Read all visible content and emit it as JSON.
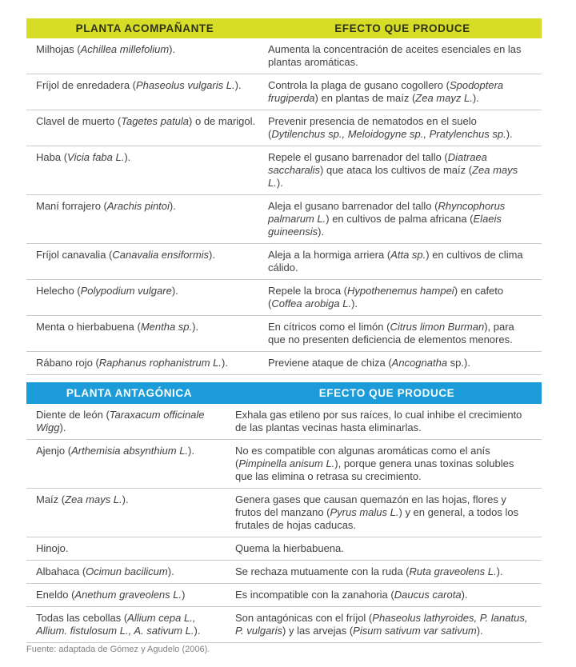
{
  "document": {
    "source_note": "Fuente: adaptada de Gómez y Agudelo (2006)."
  },
  "colors": {
    "companion_header_bg": "#d7dc26",
    "companion_header_text": "#2e3318",
    "antagonist_header_bg": "#1b9cd8",
    "antagonist_header_text": "#ffffff",
    "body_text": "#414042",
    "divider_line": "#c9cacb",
    "source_text": "#808285"
  },
  "tables": [
    {
      "name": "companion-plants",
      "header": {
        "col1": "PLANTA ACOMPAÑANTE",
        "col2": "EFECTO QUE PRODUCE",
        "bg": "#d7dc26",
        "color": "#2e3318"
      },
      "rows": [
        {
          "plant": "Milhojas (*Achillea millefolium*).",
          "effect": "Aumenta la concentración de aceites esenciales en las plantas aromáticas."
        },
        {
          "plant": "Fríjol de enredadera (*Phaseolus vulgaris L.*).",
          "effect": "Controla la plaga de gusano cogollero (*Spodoptera frugiperda*) en plantas de maíz (*Zea mayz L.*)."
        },
        {
          "plant": "Clavel de muerto (*Tagetes patula*) o de marigol.",
          "effect": "Prevenir presencia de nematodos en el suelo (*Dytilenchus sp., Meloidogyne sp., Pratylenchus sp.*)."
        },
        {
          "plant": "Haba (*Vicia faba L.*).",
          "effect": "Repele el gusano barrenador del tallo (*Diatraea saccharalis*) que ataca los cultivos de maíz (*Zea mays L.*)."
        },
        {
          "plant": "Maní forrajero (*Arachis pintoi*).",
          "effect": "Aleja el gusano barrenador del tallo (*Rhyncophorus palmarum L.*) en cultivos de palma africana (*Elaeis guineensis*)."
        },
        {
          "plant": "Fríjol canavalia (*Canavalia ensiformis*).",
          "effect": "Aleja a la hormiga arriera (*Atta sp.*) en cultivos de clima cálido."
        },
        {
          "plant": "Helecho (*Polypodium vulgare*).",
          "effect": "Repele la broca (*Hypothenemus hampei*) en cafeto (*Coffea arobiga L.*)."
        },
        {
          "plant": "Menta o hierbabuena (*Mentha sp.*).",
          "effect": "En cítricos como el limón (*Citrus limon Burman*), para que no presenten deficiencia de elementos menores."
        },
        {
          "plant": "Rábano rojo (*Raphanus rophanistrum L.*).",
          "effect": "Previene ataque de chiza (*Ancognatha* sp.)."
        }
      ]
    },
    {
      "name": "antagonistic-plants",
      "header": {
        "col1": "PLANTA ANTAGÓNICA",
        "col2": "EFECTO QUE PRODUCE",
        "bg": "#1b9cd8",
        "color": "#ffffff"
      },
      "rows": [
        {
          "plant": "Diente de león (*Taraxacum officinale Wigg*).",
          "effect": "Exhala gas etileno por sus raíces, lo cual inhibe el crecimiento de las plantas vecinas hasta eliminarlas."
        },
        {
          "plant": "Ajenjo (*Arthemisia absynthium L.*).",
          "effect": "No es compatible con algunas aromáticas como el anís (*Pimpinella anisum L.*), porque genera unas toxinas solubles que las elimina o retrasa su crecimiento."
        },
        {
          "plant": "Maíz (*Zea mays L.*).",
          "effect": "Genera gases que causan quemazón en las hojas, flores y frutos del manzano (*Pyrus malus L.*) y en general, a todos los frutales de hojas caducas."
        },
        {
          "plant": "Hinojo.",
          "effect": "Quema la hierbabuena."
        },
        {
          "plant": "Albahaca (*Ocimun bacilicum*).",
          "effect": "Se rechaza mutuamente con la ruda (*Ruta graveolens L.*)."
        },
        {
          "plant": "Eneldo (*Anethum graveolens L.*)",
          "effect": "Es incompatible con la zanahoria (*Daucus carota*)."
        },
        {
          "plant": "Todas las cebollas (*Allium cepa L., Allium. fistulosum L., A. sativum L.*).",
          "effect": "Son antagónicas con el fríjol (*Phaseolus lathyroides, P. lanatus, P. vulgaris*) y las arvejas (*Pisum sativum var sativum*)."
        }
      ]
    }
  ]
}
